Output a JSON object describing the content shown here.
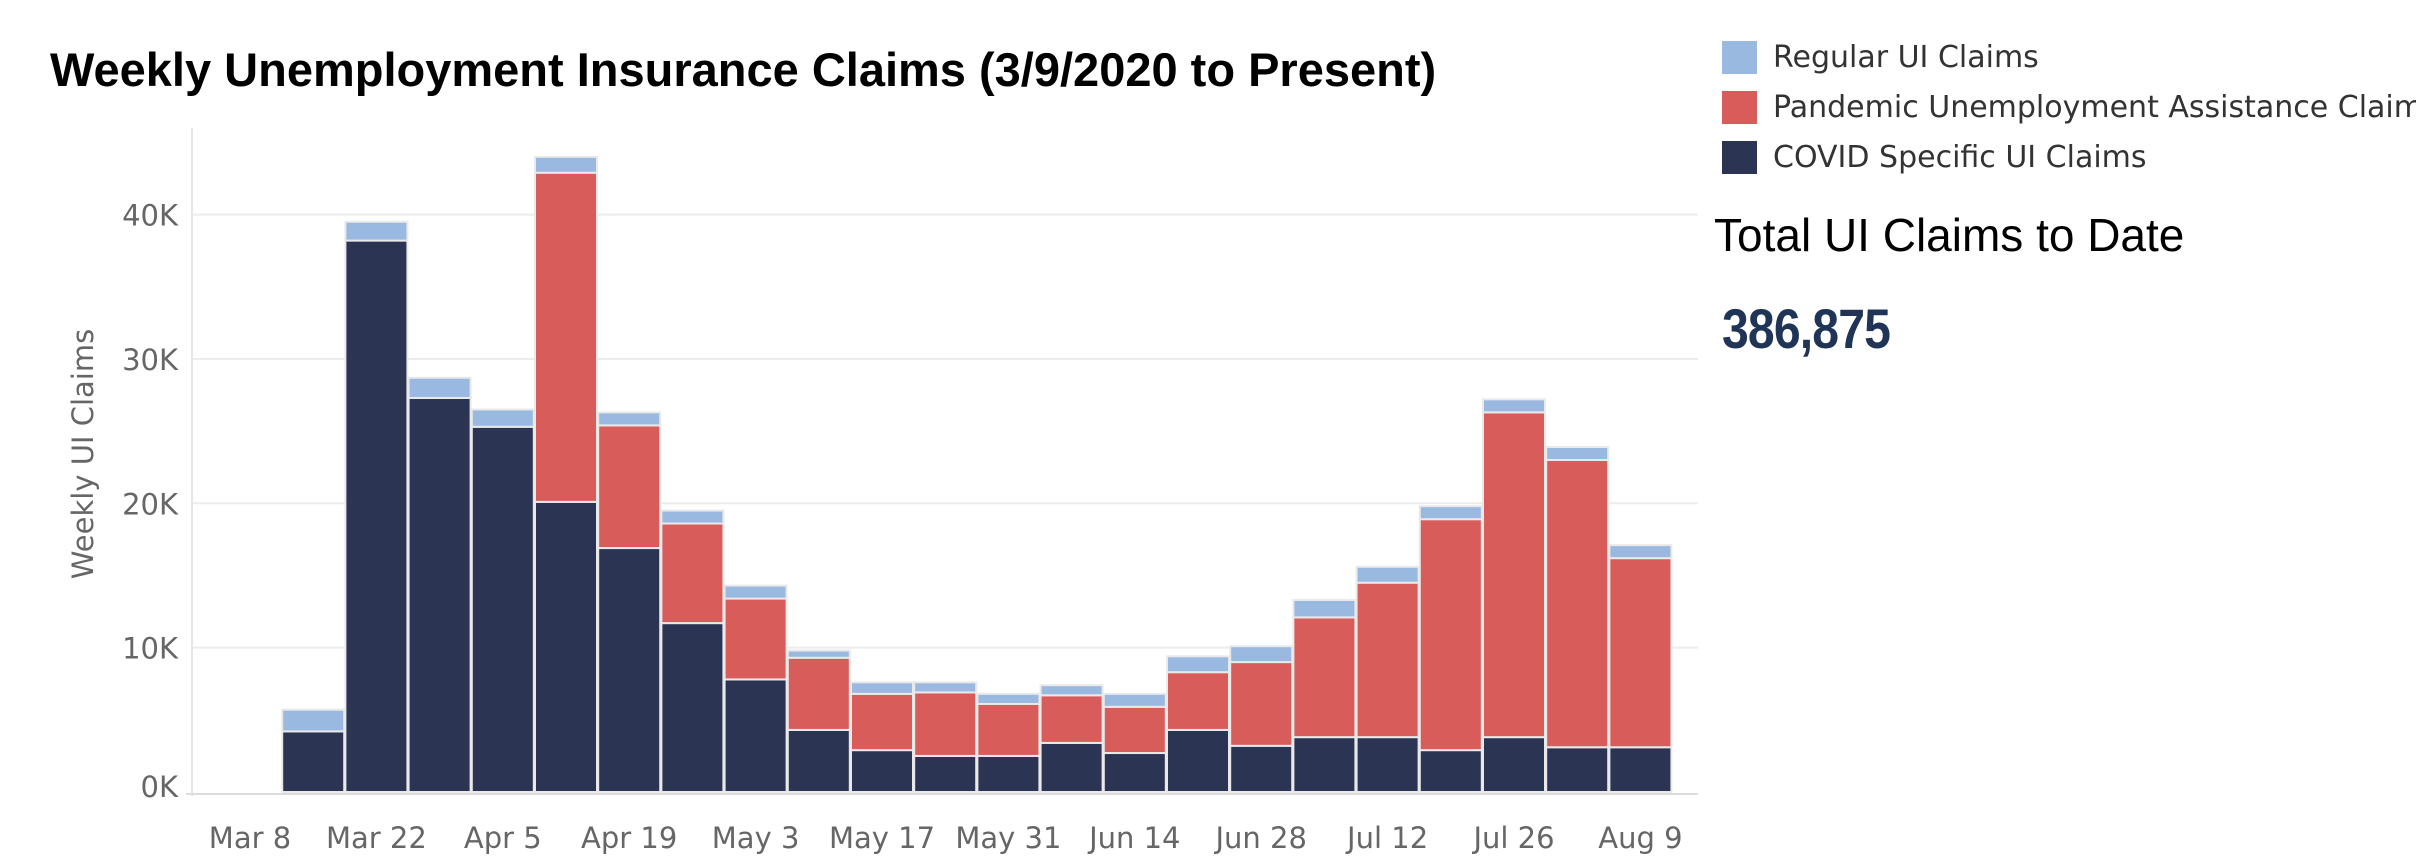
{
  "chart_data": {
    "type": "bar",
    "stacked": true,
    "title": "Weekly Unemployment Insurance Claims (3/9/2020 to Present)",
    "xlabel": "",
    "ylabel": "Weekly UI Claims",
    "ylim": [
      0,
      46000
    ],
    "yticks": [
      0,
      10000,
      20000,
      30000,
      40000
    ],
    "ytick_labels": [
      "0K",
      "10K",
      "20K",
      "30K",
      "40K"
    ],
    "grid": true,
    "legend_position": "top-right",
    "categories": [
      "Mar 8",
      "Mar 15",
      "Mar 22",
      "Mar 29",
      "Apr 5",
      "Apr 12",
      "Apr 19",
      "Apr 26",
      "May 3",
      "May 10",
      "May 17",
      "May 24",
      "May 31",
      "Jun 7",
      "Jun 14",
      "Jun 21",
      "Jun 28",
      "Jul 5",
      "Jul 12",
      "Jul 19",
      "Jul 26",
      "Aug 2",
      "Aug 9"
    ],
    "xtick_labels": [
      "Mar 8",
      "",
      "Mar 22",
      "",
      "Apr 5",
      "",
      "Apr 19",
      "",
      "May 3",
      "",
      "May 17",
      "",
      "May 31",
      "",
      "Jun 14",
      "",
      "Jun 28",
      "",
      "Jul 12",
      "",
      "Jul 26",
      "",
      "Aug 9"
    ],
    "series": [
      {
        "name": "COVID Specific UI Claims",
        "color": "#2b3553",
        "values": [
          null,
          4200,
          38200,
          27300,
          25300,
          20100,
          16900,
          11700,
          7800,
          4300,
          2900,
          2500,
          2500,
          3400,
          2700,
          4300,
          3200,
          3800,
          3800,
          2900,
          3800,
          3100,
          3100
        ]
      },
      {
        "name": "Pandemic Unemployment Assistance Claims",
        "color": "#d85c5a",
        "values": [
          null,
          0,
          0,
          0,
          0,
          22800,
          8500,
          6900,
          5600,
          5000,
          3900,
          4400,
          3600,
          3300,
          3200,
          4000,
          5800,
          8300,
          10700,
          16000,
          22500,
          19900,
          13100
        ]
      },
      {
        "name": "Regular UI Claims",
        "color": "#9ab9e0",
        "values": [
          null,
          1500,
          1300,
          1400,
          1200,
          1100,
          900,
          900,
          900,
          500,
          800,
          700,
          700,
          700,
          900,
          1100,
          1100,
          1200,
          1100,
          900,
          900,
          900,
          900
        ]
      }
    ]
  },
  "legend": {
    "items": [
      {
        "label": "Regular UI Claims",
        "color": "#9ab9e0"
      },
      {
        "label": "Pandemic Unemployment Assistance Claims",
        "color": "#d85c5a"
      },
      {
        "label": "COVID Specific UI Claims",
        "color": "#2b3553"
      }
    ]
  },
  "total": {
    "title": "Total UI Claims to Date",
    "value": "386,875"
  }
}
